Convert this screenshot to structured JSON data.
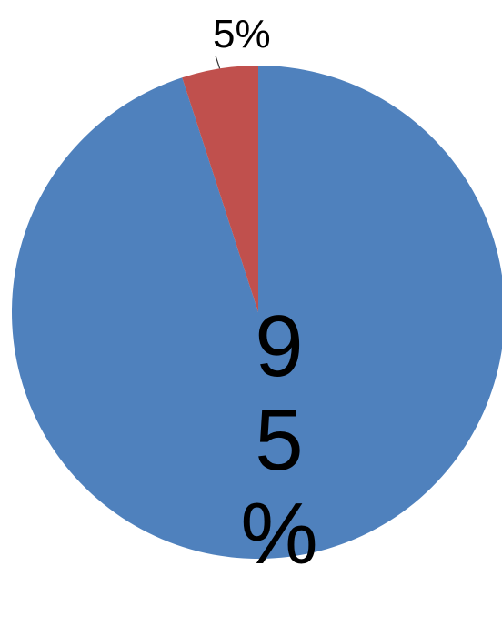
{
  "chart_data": {
    "type": "pie",
    "title": "",
    "start_angle_deg": 0,
    "direction": "clockwise",
    "slices": [
      {
        "label": "95%",
        "value": 95,
        "color": "#4F81BD",
        "label_style": "inside-vertical"
      },
      {
        "label": "5%",
        "value": 5,
        "color": "#C0504D",
        "label_style": "outside-leader"
      }
    ],
    "legend": "none"
  }
}
